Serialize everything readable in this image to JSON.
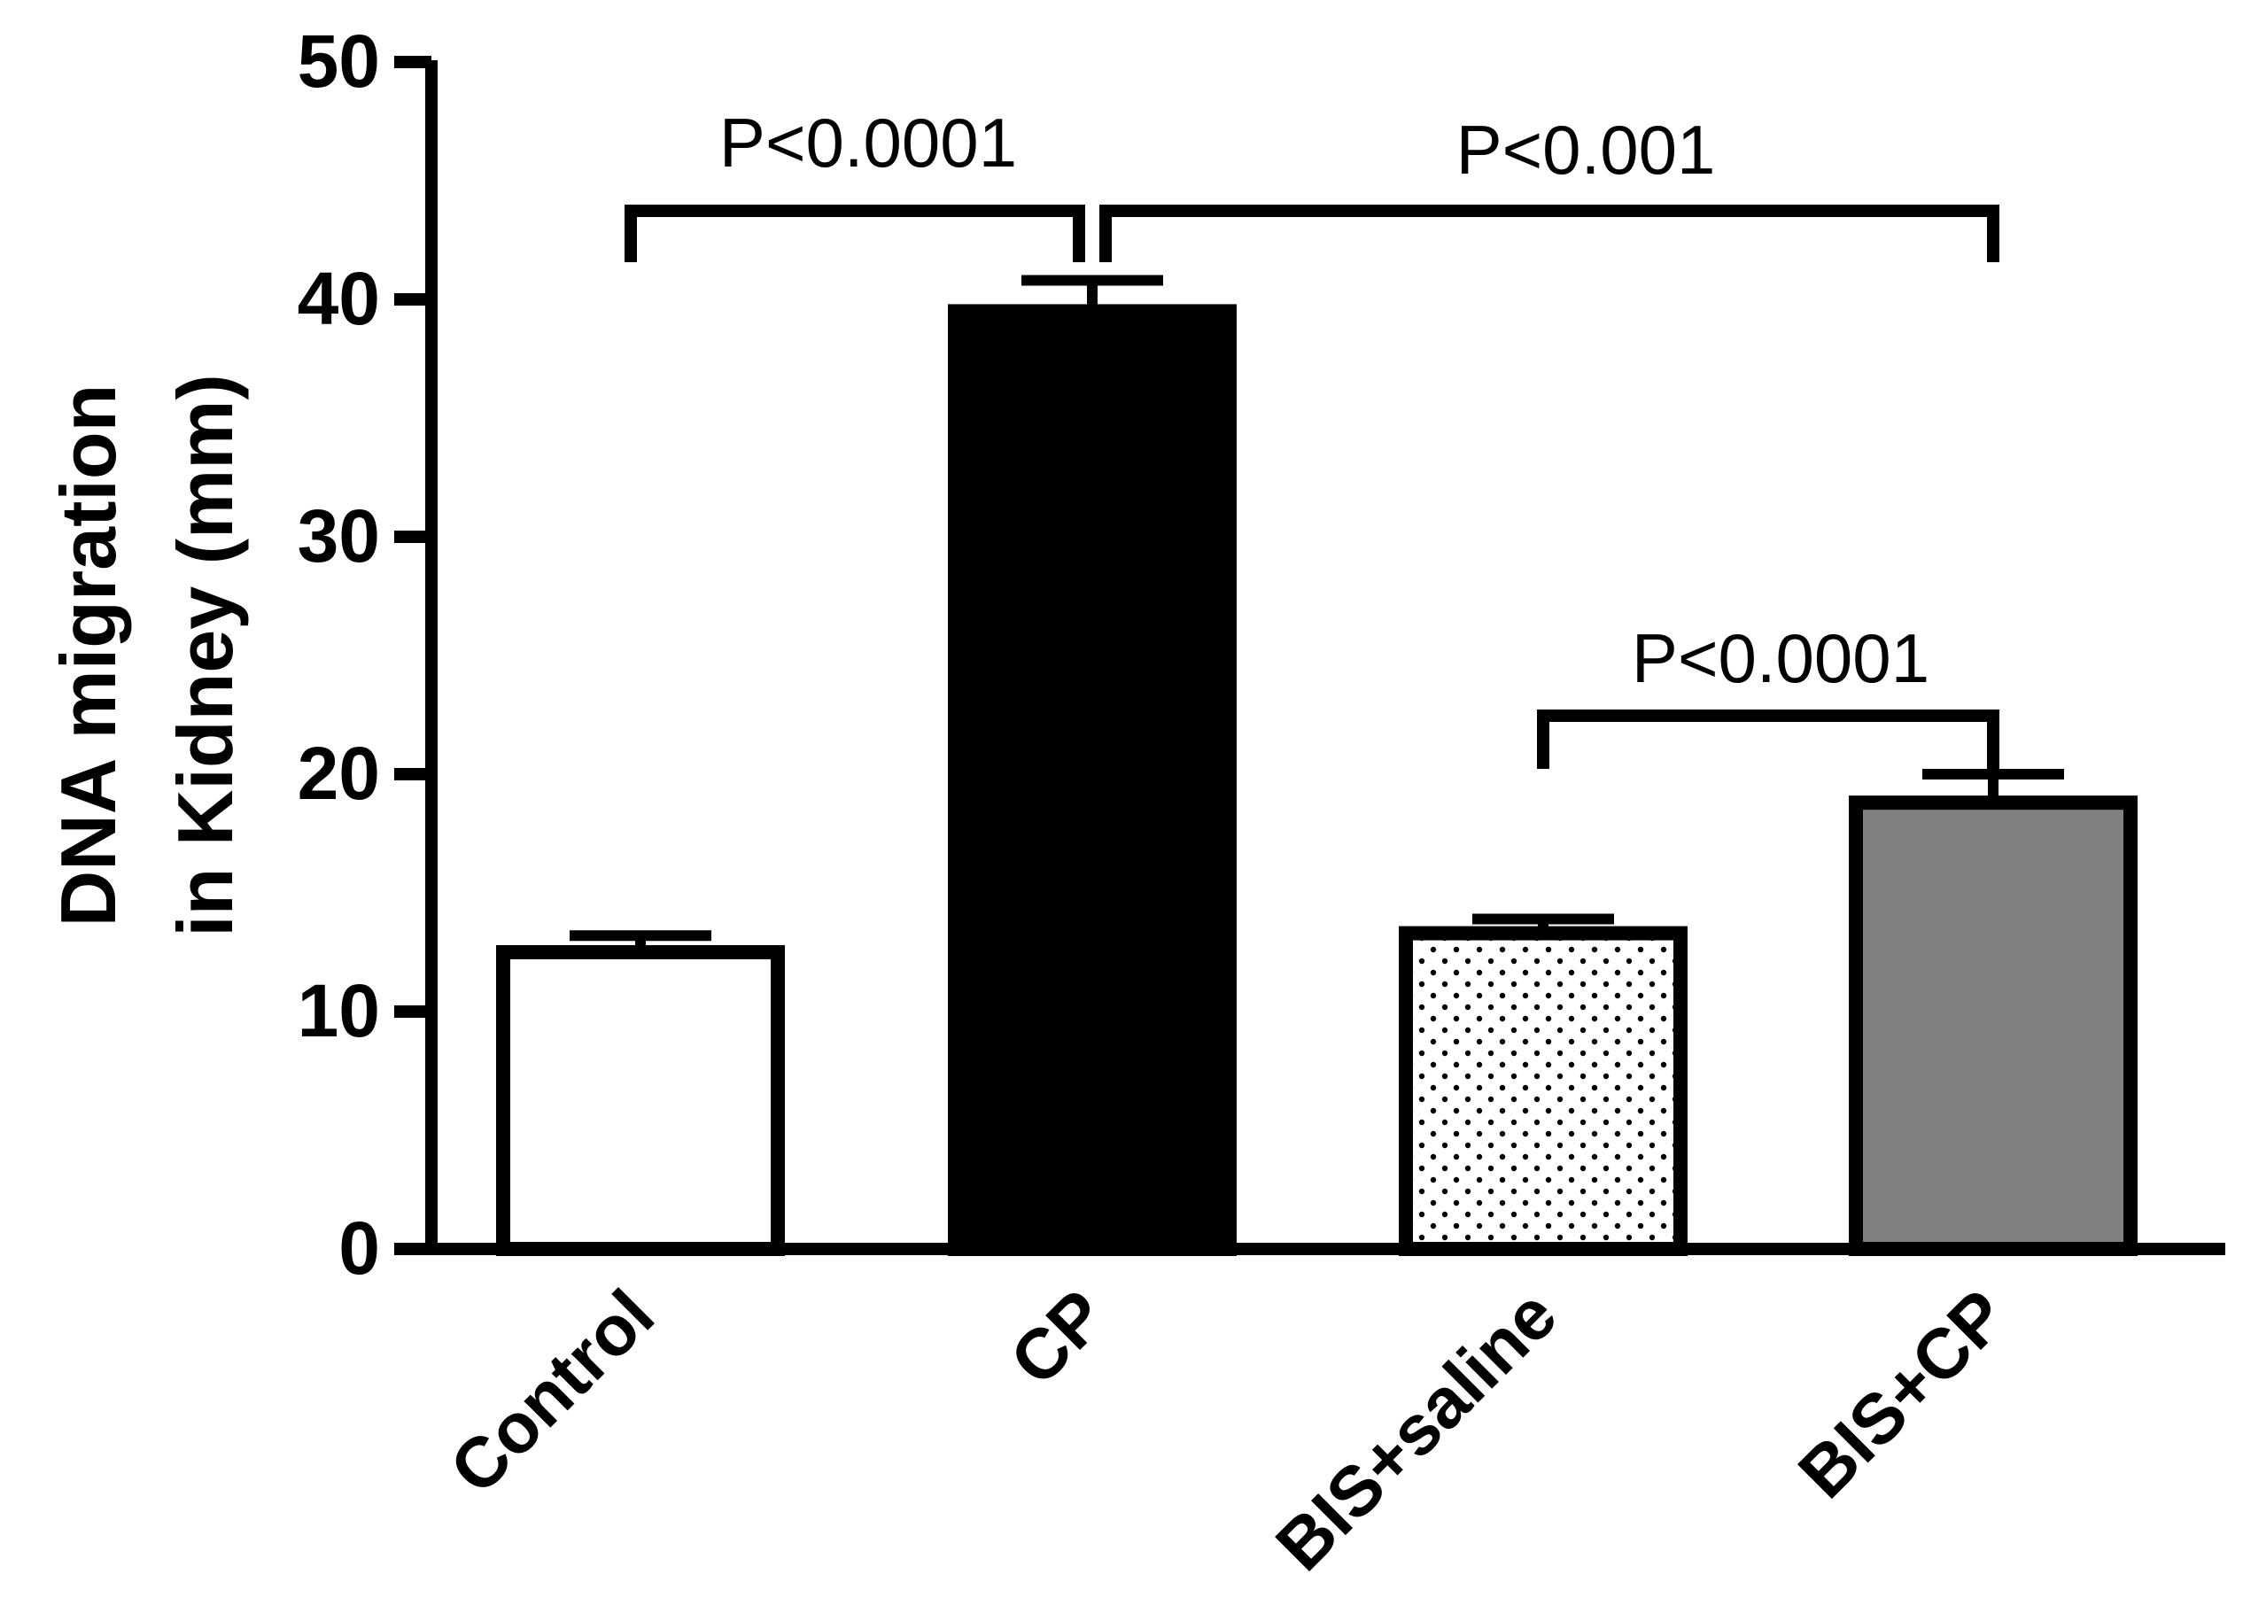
{
  "chart_data": {
    "type": "bar",
    "ylabel_lines": [
      "DNA migration",
      "in Kidney (mm)"
    ],
    "categories": [
      "Control",
      "CP",
      "BIS+saline",
      "BIS+CP"
    ],
    "values": [
      12.5,
      39.5,
      13.3,
      18.8
    ],
    "errors": [
      0.7,
      1.3,
      0.6,
      1.2
    ],
    "fills": [
      "pattern:none",
      "#000000",
      "pattern:dots",
      "#808080"
    ],
    "ylim": [
      0,
      50
    ],
    "yticks": [
      0,
      10,
      20,
      30,
      40,
      50
    ],
    "grid": false,
    "legend": "none",
    "significance": [
      {
        "from": 0,
        "to": 1,
        "label": "P<0.0001"
      },
      {
        "from": 1,
        "to": 3,
        "label": "P<0.001"
      },
      {
        "from": 2,
        "to": 3,
        "label": "P<0.0001"
      }
    ]
  }
}
